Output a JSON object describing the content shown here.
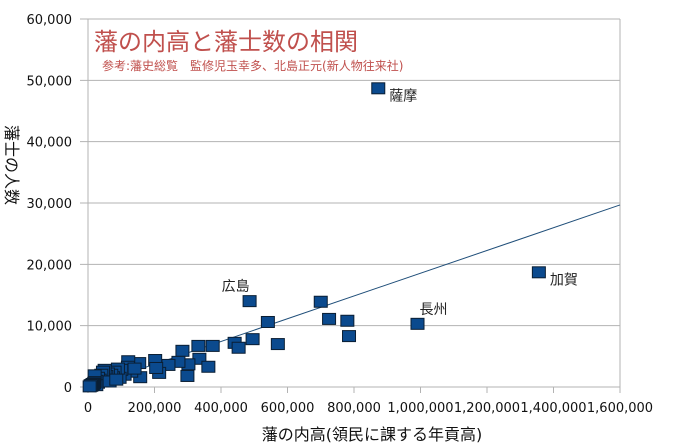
{
  "chart_data": {
    "type": "scatter",
    "title": "藩の内高と藩士数の相関",
    "subtitle": "参考:藩史総覧　監修児玉幸多、北島正元(新人物往来社)",
    "xlabel": "藩の内高(領民に課する年貢高)",
    "ylabel": "藩士の人数",
    "xlim": [
      0,
      1600000
    ],
    "ylim": [
      0,
      60000
    ],
    "xticks": [
      0,
      200000,
      400000,
      600000,
      800000,
      1000000,
      1200000,
      1400000,
      1600000
    ],
    "xtick_labels": [
      "0",
      "200,000",
      "400,000",
      "600,000",
      "800,000",
      "1,000,000",
      "1,200,000",
      "1,400,000",
      "1,600,000"
    ],
    "yticks": [
      0,
      10000,
      20000,
      30000,
      40000,
      50000,
      60000
    ],
    "ytick_labels": [
      "0",
      "10,000",
      "20,000",
      "30,000",
      "40,000",
      "50,000",
      "60,000"
    ],
    "grid": "horizontal",
    "marker_color": "#0b4a8e",
    "title_color": "#c0504d",
    "trendline": {
      "type": "linear",
      "color": "#1f4e79",
      "slope": 0.01855,
      "intercept": 0
    },
    "annotations": [
      {
        "text": "薩摩",
        "x": 873000,
        "y": 48700
      },
      {
        "text": "加賀",
        "x": 1356000,
        "y": 18700
      },
      {
        "text": "長州",
        "x": 991000,
        "y": 10300
      },
      {
        "text": "広島",
        "x": 486000,
        "y": 14000
      }
    ],
    "points": [
      [
        873000,
        48700
      ],
      [
        1356000,
        18700
      ],
      [
        991000,
        10300
      ],
      [
        486000,
        14000
      ],
      [
        700000,
        13900
      ],
      [
        725000,
        11100
      ],
      [
        780000,
        10800
      ],
      [
        785000,
        8300
      ],
      [
        541000,
        10600
      ],
      [
        495000,
        7800
      ],
      [
        571000,
        7000
      ],
      [
        441000,
        7200
      ],
      [
        453000,
        6400
      ],
      [
        332000,
        6700
      ],
      [
        375000,
        6700
      ],
      [
        335000,
        4600
      ],
      [
        362000,
        3300
      ],
      [
        302000,
        3700
      ],
      [
        299000,
        1800
      ],
      [
        284000,
        5900
      ],
      [
        272000,
        4100
      ],
      [
        242000,
        3600
      ],
      [
        202000,
        4400
      ],
      [
        214000,
        2300
      ],
      [
        205000,
        3100
      ],
      [
        154000,
        3900
      ],
      [
        157000,
        1600
      ],
      [
        121000,
        4200
      ],
      [
        120000,
        3300
      ],
      [
        130000,
        2500
      ],
      [
        110000,
        2000
      ],
      [
        100000,
        2800
      ],
      [
        95000,
        1500
      ],
      [
        90000,
        3000
      ],
      [
        80000,
        2500
      ],
      [
        75000,
        1600
      ],
      [
        70000,
        2000
      ],
      [
        60000,
        2200
      ],
      [
        55000,
        1800
      ],
      [
        50000,
        2800
      ],
      [
        50000,
        1200
      ],
      [
        45000,
        2500
      ],
      [
        40000,
        2000
      ],
      [
        40000,
        900
      ],
      [
        35000,
        1200
      ],
      [
        30000,
        1500
      ],
      [
        30000,
        700
      ],
      [
        25000,
        1000
      ],
      [
        25000,
        300
      ],
      [
        20000,
        1900
      ],
      [
        20000,
        800
      ],
      [
        18000,
        600
      ],
      [
        15000,
        500
      ],
      [
        12000,
        400
      ],
      [
        10000,
        200
      ],
      [
        8000,
        300
      ],
      [
        5000,
        100
      ],
      [
        140000,
        3000
      ],
      [
        65000,
        900
      ],
      [
        85000,
        1200
      ]
    ]
  }
}
